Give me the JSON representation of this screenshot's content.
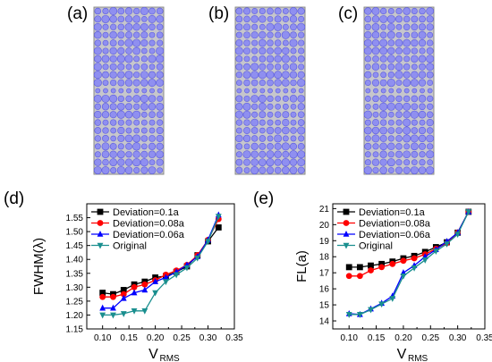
{
  "figure": {
    "panels": [
      {
        "label": "(a)"
      },
      {
        "label": "(b)"
      },
      {
        "label": "(c)"
      },
      {
        "label": "(d)"
      },
      {
        "label": "(e)"
      }
    ],
    "colors": {
      "plate_fill": "#c6c6cc",
      "plate_border": "#8a8a8a",
      "hole_fill": "#8f8ff0",
      "hole_stroke": "#5a5adf"
    }
  },
  "chart_data": [
    {
      "type": "line",
      "panel": "(d)",
      "title": "",
      "xlabel_main": "V",
      "xlabel_sub": "RMS",
      "ylabel": "FWHM(λ)",
      "xlim": [
        0.07,
        0.35
      ],
      "ylim": [
        1.15,
        1.6
      ],
      "xticks": [
        "0.10",
        "0.15",
        "0.20",
        "0.25",
        "0.30",
        "0.35"
      ],
      "yticks": [
        "1.15",
        "1.20",
        "1.25",
        "1.30",
        "1.35",
        "1.40",
        "1.45",
        "1.50",
        "1.55"
      ],
      "legend_position": "top-left",
      "x": [
        0.1,
        0.12,
        0.14,
        0.16,
        0.18,
        0.2,
        0.22,
        0.24,
        0.26,
        0.28,
        0.3,
        0.32
      ],
      "series": [
        {
          "name": "Deviation=0.1a",
          "color": "#000000",
          "marker": "square",
          "values": [
            1.28,
            1.275,
            1.29,
            1.31,
            1.32,
            1.335,
            1.34,
            1.355,
            1.375,
            1.415,
            1.465,
            1.515
          ]
        },
        {
          "name": "Deviation=0.08a",
          "color": "#ff0000",
          "marker": "circle",
          "values": [
            1.265,
            1.265,
            1.275,
            1.3,
            1.31,
            1.325,
            1.345,
            1.36,
            1.38,
            1.415,
            1.47,
            1.545
          ]
        },
        {
          "name": "Deviation=0.06a",
          "color": "#0000ff",
          "marker": "triangle-up",
          "values": [
            1.225,
            1.225,
            1.26,
            1.28,
            1.29,
            1.32,
            1.335,
            1.355,
            1.38,
            1.41,
            1.47,
            1.56
          ]
        },
        {
          "name": "Original",
          "color": "#1a8f8f",
          "marker": "triangle-down",
          "values": [
            1.2,
            1.2,
            1.205,
            1.215,
            1.215,
            1.28,
            1.32,
            1.345,
            1.37,
            1.405,
            1.465,
            1.555
          ]
        }
      ]
    },
    {
      "type": "line",
      "panel": "(e)",
      "title": "",
      "xlabel_main": "V",
      "xlabel_sub": "RMS",
      "ylabel": "FL(a)",
      "xlim": [
        0.07,
        0.35
      ],
      "ylim": [
        13.5,
        21.3
      ],
      "xticks": [
        "0.10",
        "0.15",
        "0.20",
        "0.25",
        "0.30",
        "0.35"
      ],
      "yticks": [
        "14",
        "15",
        "16",
        "17",
        "18",
        "19",
        "20",
        "21"
      ],
      "legend_position": "top-left",
      "x": [
        0.1,
        0.12,
        0.14,
        0.16,
        0.18,
        0.2,
        0.22,
        0.24,
        0.26,
        0.28,
        0.3,
        0.32
      ],
      "series": [
        {
          "name": "Deviation=0.1a",
          "color": "#000000",
          "marker": "square",
          "values": [
            17.35,
            17.35,
            17.45,
            17.55,
            17.7,
            17.9,
            18.05,
            18.3,
            18.6,
            18.9,
            19.5,
            20.8
          ]
        },
        {
          "name": "Deviation=0.08a",
          "color": "#ff0000",
          "marker": "circle",
          "values": [
            16.8,
            16.8,
            17.15,
            17.35,
            17.55,
            17.75,
            17.9,
            18.15,
            18.5,
            18.85,
            19.5,
            20.8
          ]
        },
        {
          "name": "Deviation=0.06a",
          "color": "#0000ff",
          "marker": "triangle-up",
          "values": [
            14.45,
            14.4,
            14.75,
            15.1,
            15.55,
            17.0,
            17.45,
            18.0,
            18.45,
            18.95,
            19.5,
            20.8
          ]
        },
        {
          "name": "Original",
          "color": "#1a8f8f",
          "marker": "triangle-down",
          "values": [
            14.4,
            14.4,
            14.7,
            15.05,
            15.4,
            16.8,
            17.3,
            17.8,
            18.35,
            18.8,
            19.4,
            20.8
          ]
        }
      ]
    }
  ]
}
